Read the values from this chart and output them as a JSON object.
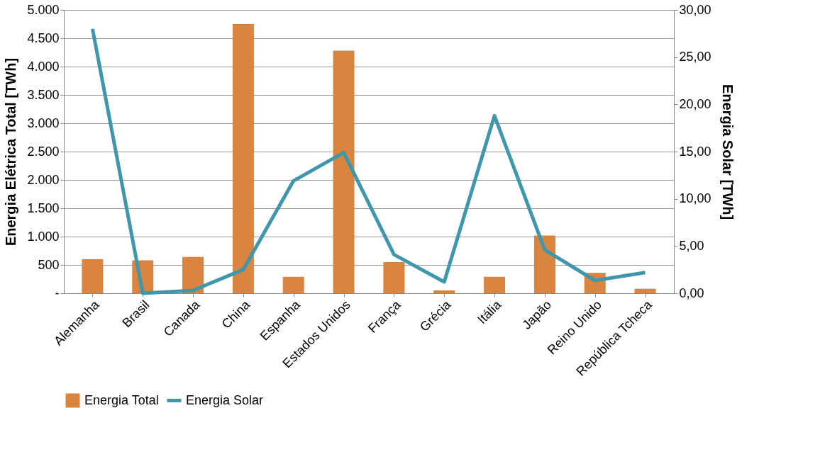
{
  "chart_data": {
    "type": "bar",
    "categories": [
      "Alemanha",
      "Brasil",
      "Canada",
      "China",
      "Espanha",
      "Estados Unidos",
      "França",
      "Grécia",
      "Itália",
      "Japão",
      "Reino Unido",
      "República Tcheca"
    ],
    "ylabel": "Energia Elétrica Total [TWh]",
    "y2label": "Energia Solar [TWh]",
    "ylim": [
      0,
      5000
    ],
    "yticks": [
      {
        "value": 0,
        "label": "-"
      },
      {
        "value": 500,
        "label": "500"
      },
      {
        "value": 1000,
        "label": "1.000"
      },
      {
        "value": 1500,
        "label": "1.500"
      },
      {
        "value": 2000,
        "label": "2.000"
      },
      {
        "value": 2500,
        "label": "2.500"
      },
      {
        "value": 3000,
        "label": "3.000"
      },
      {
        "value": 3500,
        "label": "3.500"
      },
      {
        "value": 4000,
        "label": "4.000"
      },
      {
        "value": 4500,
        "label": "4.500"
      },
      {
        "value": 5000,
        "label": "5.000"
      }
    ],
    "y2lim": [
      0,
      30
    ],
    "y2ticks": [
      {
        "value": 0,
        "label": "0,00"
      },
      {
        "value": 5,
        "label": "5,00"
      },
      {
        "value": 10,
        "label": "10,00"
      },
      {
        "value": 15,
        "label": "15,00"
      },
      {
        "value": 20,
        "label": "20,00"
      },
      {
        "value": 25,
        "label": "25,00"
      },
      {
        "value": 30,
        "label": "30,00"
      }
    ],
    "grid": "y",
    "legend": "bottom",
    "line_style": "solid",
    "series": [
      {
        "name": "Energia Total",
        "color": "#d9843f",
        "values": [
          600,
          580,
          640,
          4750,
          290,
          4280,
          550,
          50,
          290,
          1020,
          360,
          80
        ]
      },
      {
        "name": "Energia Solar",
        "type": "line",
        "axis": "y2",
        "color": "#4097ac",
        "values": [
          28,
          0,
          0.3,
          2.5,
          11.9,
          14.9,
          4.1,
          1.2,
          18.8,
          4.6,
          1.35,
          2.2
        ]
      }
    ]
  }
}
